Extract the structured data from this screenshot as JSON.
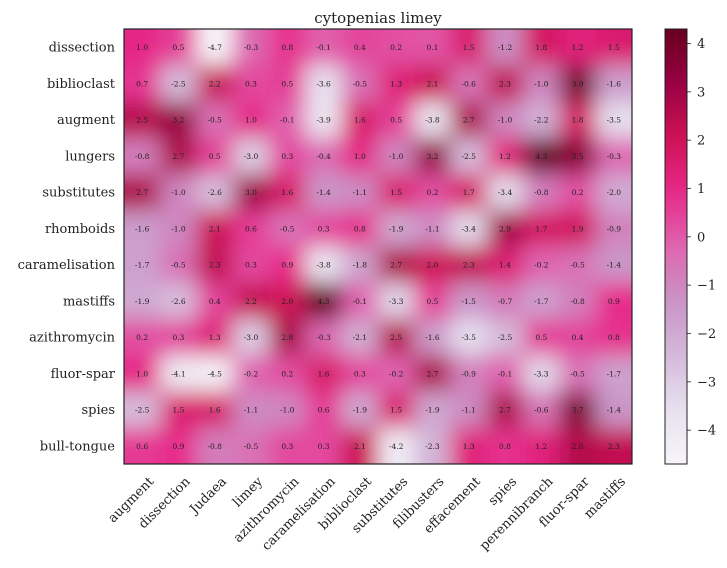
{
  "colors": {
    "colormap": "PuRd",
    "frame": "#222222",
    "cell_text": "#222222"
  },
  "chart_data": {
    "type": "heatmap",
    "title": "cytopenias limey",
    "interpolation": "smooth",
    "x_categories": [
      "augment",
      "dissection",
      "Judaea",
      "limey",
      "azithromycin",
      "caramelisation",
      "biblioclast",
      "substitutes",
      "filibusters",
      "effacement",
      "spies",
      "perennibranch",
      "fluor-spar",
      "mastiffs"
    ],
    "y_categories": [
      "dissection",
      "biblioclast",
      "augment",
      "lungers",
      "substitutes",
      "rhomboids",
      "caramelisation",
      "mastiffs",
      "azithromycin",
      "fluor-spar",
      "spies",
      "bull-tongue"
    ],
    "values": [
      [
        1.0,
        0.5,
        -4.7,
        -0.3,
        0.8,
        -0.1,
        0.4,
        0.2,
        0.1,
        1.5,
        -1.2,
        1.8,
        1.2,
        1.5
      ],
      [
        0.7,
        -2.5,
        2.2,
        0.3,
        0.5,
        -3.6,
        -0.5,
        1.3,
        2.1,
        -0.6,
        2.3,
        -1.0,
        3.9,
        -1.6
      ],
      [
        2.5,
        3.2,
        -0.5,
        1.0,
        -0.1,
        -3.9,
        1.6,
        0.5,
        -3.8,
        2.7,
        -1.0,
        -2.2,
        1.8,
        -3.5
      ],
      [
        -0.8,
        2.7,
        0.5,
        -3.0,
        0.3,
        -0.4,
        1.0,
        -1.0,
        3.2,
        -2.5,
        1.2,
        4.3,
        3.5,
        -0.3
      ],
      [
        2.7,
        -1.0,
        -2.6,
        3.0,
        1.6,
        -1.4,
        -1.1,
        1.5,
        0.2,
        1.7,
        -3.4,
        -0.8,
        0.2,
        -2.0
      ],
      [
        -1.6,
        -1.0,
        2.1,
        0.6,
        -0.5,
        0.3,
        0.8,
        -1.9,
        -1.1,
        -3.4,
        2.9,
        1.7,
        1.9,
        -0.9
      ],
      [
        -1.7,
        -0.5,
        2.3,
        0.3,
        0.9,
        -3.8,
        -1.8,
        2.7,
        2.0,
        2.3,
        1.4,
        -0.2,
        -0.5,
        -1.4
      ],
      [
        -1.9,
        -2.6,
        0.4,
        2.2,
        2.0,
        4.3,
        -0.1,
        -3.3,
        0.5,
        -1.5,
        -0.7,
        -1.7,
        -0.8,
        0.9
      ],
      [
        0.2,
        0.3,
        1.3,
        -3.0,
        2.8,
        -0.3,
        -2.1,
        2.5,
        -1.6,
        -3.5,
        -2.5,
        0.5,
        0.4,
        0.8
      ],
      [
        1.0,
        -4.1,
        -4.5,
        -0.2,
        0.2,
        1.6,
        0.3,
        -0.2,
        2.7,
        -0.9,
        -0.1,
        -3.3,
        -0.5,
        -1.7
      ],
      [
        -2.5,
        1.5,
        1.6,
        -1.1,
        -1.0,
        0.6,
        -1.9,
        1.5,
        -1.9,
        -1.1,
        2.7,
        -0.6,
        3.7,
        -1.4
      ],
      [
        0.6,
        0.9,
        -0.8,
        -0.5,
        0.3,
        0.3,
        2.1,
        -4.2,
        -2.3,
        1.3,
        0.8,
        1.2,
        2.6,
        2.3
      ]
    ],
    "colorbar": {
      "range": [
        -4.7,
        4.3
      ],
      "ticks": [
        -4,
        -3,
        -2,
        -1,
        0,
        1,
        2,
        3,
        4
      ],
      "tick_labels": [
        "−4",
        "−3",
        "−2",
        "−1",
        "0",
        "1",
        "2",
        "3",
        "4"
      ]
    }
  }
}
